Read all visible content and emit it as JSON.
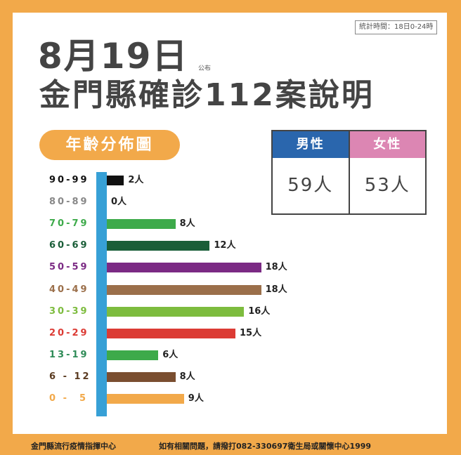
{
  "header": {
    "stat_time": "統計時間：18日0-24時",
    "date": "8月19日",
    "published": "公布",
    "title": "金門縣確診112案說明"
  },
  "section_label": "年齡分佈圖",
  "gender": {
    "male": {
      "label": "男性",
      "value": "59人",
      "color": "#2a66ad"
    },
    "female": {
      "label": "女性",
      "value": "53人",
      "color": "#dc86b3"
    }
  },
  "chart_data": {
    "type": "bar",
    "orientation": "horizontal",
    "title": "年齡分佈圖",
    "categories": [
      "90-99",
      "80-89",
      "70-79",
      "60-69",
      "50-59",
      "40-49",
      "30-39",
      "20-29",
      "13-19",
      "6-12",
      "0-5"
    ],
    "category_labels": [
      "90-99",
      "80-89",
      "70-79",
      "60-69",
      "50-59",
      "40-49",
      "30-39",
      "20-29",
      "13-19",
      "6 - 12",
      "0 -  5"
    ],
    "values": [
      2,
      0,
      8,
      12,
      18,
      18,
      16,
      15,
      6,
      8,
      9
    ],
    "value_labels": [
      "2人",
      "0人",
      "8人",
      "12人",
      "18人",
      "18人",
      "16人",
      "15人",
      "6人",
      "8人",
      "9人"
    ],
    "bar_colors": [
      "#111111",
      "#888888",
      "#3daa4a",
      "#1a5e38",
      "#7b2a84",
      "#9b6f4a",
      "#7dbc3e",
      "#dc3b34",
      "#3daa4a",
      "#7a4e30",
      "#f2a94a"
    ],
    "label_colors": [
      "#111111",
      "#888888",
      "#3daa4a",
      "#1a5e38",
      "#7b2a84",
      "#9b6f4a",
      "#7dbc3e",
      "#dc3b34",
      "#2e8b57",
      "#5a3a20",
      "#f2a94a"
    ],
    "unit": "人",
    "axis_color": "#37a0d6",
    "total": 112,
    "xlabel": "",
    "ylabel": ""
  },
  "footer": {
    "left": "金門縣流行疫情指揮中心",
    "right": "如有相關問題，請撥打082-330697衛生局或關懷中心1999"
  }
}
